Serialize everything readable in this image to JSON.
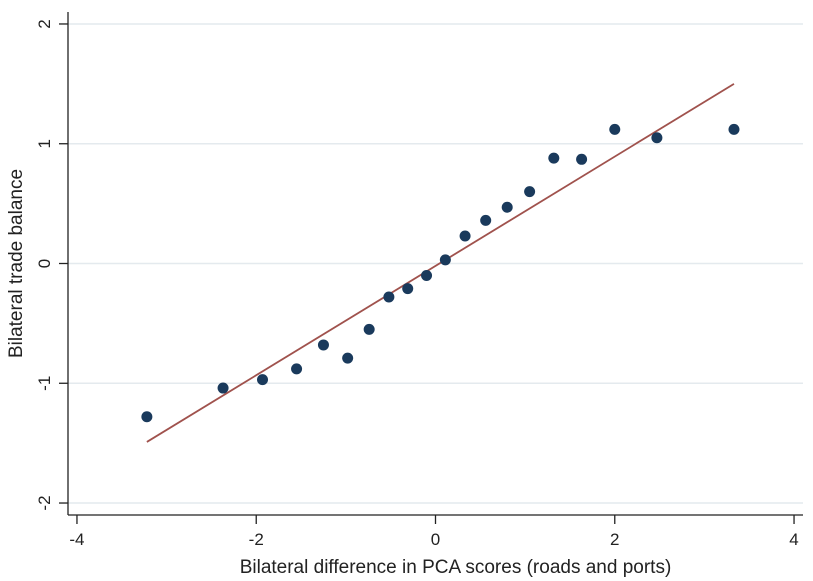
{
  "chart_data": {
    "type": "scatter",
    "title": "",
    "xlabel": "Bilateral difference in PCA scores (roads and ports)",
    "ylabel": "Bilateral trade balance",
    "xlim": [
      -4.1,
      4.1
    ],
    "ylim": [
      -2.1,
      2.1
    ],
    "xticks": [
      -4,
      -2,
      0,
      2,
      4
    ],
    "yticks": [
      -2,
      -1,
      0,
      1,
      2
    ],
    "xtick_labels": [
      "-4",
      "-2",
      "0",
      "2",
      "4"
    ],
    "ytick_labels": [
      "-2",
      "-1",
      "0",
      "1",
      "2"
    ],
    "grid": {
      "horizontal": true,
      "vertical": false
    },
    "legend": "none",
    "points": [
      {
        "x": -3.22,
        "y": -1.28
      },
      {
        "x": -2.37,
        "y": -1.04
      },
      {
        "x": -1.93,
        "y": -0.97
      },
      {
        "x": -1.55,
        "y": -0.88
      },
      {
        "x": -1.25,
        "y": -0.68
      },
      {
        "x": -0.98,
        "y": -0.79
      },
      {
        "x": -0.74,
        "y": -0.55
      },
      {
        "x": -0.52,
        "y": -0.28
      },
      {
        "x": -0.31,
        "y": -0.21
      },
      {
        "x": -0.1,
        "y": -0.1
      },
      {
        "x": 0.11,
        "y": 0.03
      },
      {
        "x": 0.33,
        "y": 0.23
      },
      {
        "x": 0.56,
        "y": 0.36
      },
      {
        "x": 0.8,
        "y": 0.47
      },
      {
        "x": 1.05,
        "y": 0.6
      },
      {
        "x": 1.32,
        "y": 0.88
      },
      {
        "x": 1.63,
        "y": 0.87
      },
      {
        "x": 2.0,
        "y": 1.12
      },
      {
        "x": 2.47,
        "y": 1.05
      },
      {
        "x": 3.33,
        "y": 1.12
      }
    ],
    "fit_line": {
      "x": [
        -3.22,
        3.33
      ],
      "y": [
        -1.49,
        1.5
      ]
    },
    "colors": {
      "points": "#1a3a5c",
      "fit_line": "#a0524d",
      "grid": "#e4eaee",
      "axis": "#222222"
    }
  }
}
